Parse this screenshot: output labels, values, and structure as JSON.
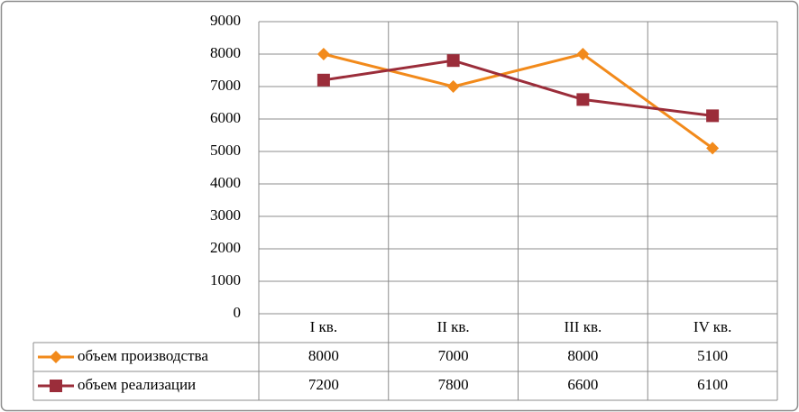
{
  "chart_data": {
    "type": "line",
    "categories": [
      "I кв.",
      "II кв.",
      "III кв.",
      "IV кв."
    ],
    "series": [
      {
        "name": "объем производства",
        "color": "#f28a1b",
        "marker": "diamond",
        "values": [
          8000,
          7000,
          8000,
          5100
        ]
      },
      {
        "name": "объем реализации",
        "color": "#9b2d3a",
        "marker": "square",
        "values": [
          7200,
          7800,
          6600,
          6100
        ]
      }
    ],
    "ylim": [
      0,
      9000
    ],
    "yticks": [
      0,
      1000,
      2000,
      3000,
      4000,
      5000,
      6000,
      7000,
      8000,
      9000
    ],
    "grid": true,
    "legend": "data-table"
  }
}
